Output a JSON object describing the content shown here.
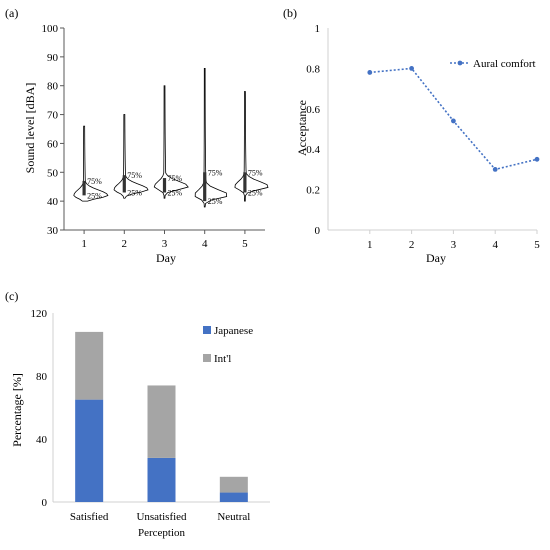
{
  "chart_data": [
    {
      "id": "a",
      "panel_label": "(a)",
      "type": "violin",
      "xlabel": "Day",
      "ylabel": "Sound level [dBA]",
      "ylim": [
        30,
        100
      ],
      "yticks": [
        30,
        40,
        50,
        60,
        70,
        80,
        90,
        100
      ],
      "categories": [
        "1",
        "2",
        "3",
        "4",
        "5"
      ],
      "quartile_labels": {
        "q1": "25%",
        "q3": "75%"
      },
      "violins": [
        {
          "min": 40,
          "q1": 42,
          "median": 43,
          "q3": 47,
          "max": 66,
          "mode": 42
        },
        {
          "min": 41,
          "q1": 43,
          "median": 45,
          "q3": 49,
          "max": 70,
          "mode": 44
        },
        {
          "min": 41,
          "q1": 43,
          "median": 45,
          "q3": 48,
          "max": 80,
          "mode": 45
        },
        {
          "min": 38,
          "q1": 40,
          "median": 42,
          "q3": 50,
          "max": 86,
          "mode": 42
        },
        {
          "min": 40,
          "q1": 43,
          "median": 45,
          "q3": 50,
          "max": 78,
          "mode": 45
        }
      ]
    },
    {
      "id": "b",
      "panel_label": "(b)",
      "type": "line",
      "xlabel": "Day",
      "ylabel": "Acceptance",
      "ylim": [
        0,
        1
      ],
      "yticks": [
        "0",
        "0.2",
        "0.4",
        "0.6",
        "0.8",
        "1"
      ],
      "xlim": [
        0,
        5
      ],
      "categories": [
        "1",
        "2",
        "3",
        "4",
        "5"
      ],
      "series": [
        {
          "name": "Aural comfort",
          "values": [
            0.78,
            0.8,
            0.54,
            0.3,
            0.35
          ],
          "color": "#4472c4"
        }
      ],
      "legend": "top-right"
    },
    {
      "id": "c",
      "panel_label": "(c)",
      "type": "bar",
      "stacked": true,
      "ylabel": "Percentage [%]",
      "ylim": [
        0,
        120
      ],
      "yticks": [
        "0",
        "40",
        "80",
        "120"
      ],
      "categories": [
        "Satisfied",
        "Unsatisfied",
        "Neutral"
      ],
      "category_lines": [
        [
          "Satisfied"
        ],
        [
          "Unsatisfied",
          "Perception"
        ],
        [
          "Neutral"
        ]
      ],
      "series": [
        {
          "name": "Japanese",
          "values": [
            65,
            28,
            6
          ],
          "color": "#4472c4"
        },
        {
          "name": "Int'l",
          "values": [
            43,
            46,
            10
          ],
          "color": "#a5a5a5"
        }
      ],
      "legend": "top-right"
    }
  ]
}
